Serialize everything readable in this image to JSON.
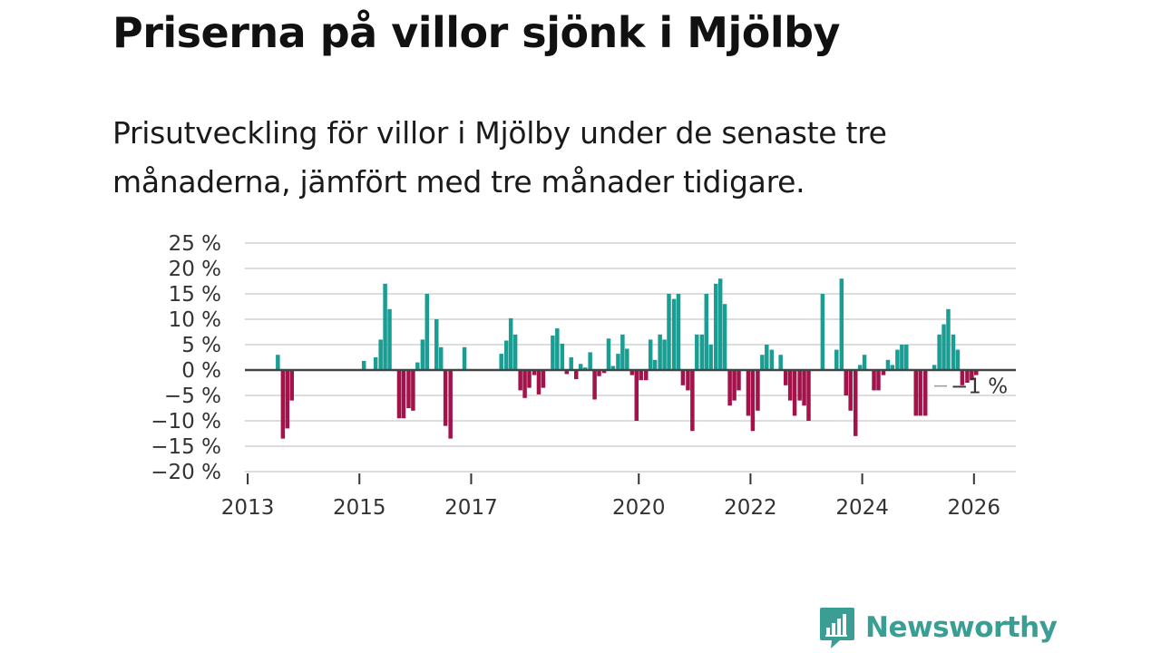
{
  "title": "Priserna på villor sjönk i Mjölby",
  "subtitle": "Prisutveckling för villor i Mjölby under de senaste tre månaderna, jämfört med tre månader tidigare.",
  "brand": {
    "name": "Newsworthy",
    "logo_icon": "newsworthy-chart-bubble-icon",
    "color": "#3a9e94"
  },
  "colors": {
    "positive": "#1a9e94",
    "negative": "#a3124a",
    "zero_line": "#444444",
    "grid": "#dddddd"
  },
  "chart_data": {
    "type": "bar",
    "title": "Priserna på villor sjönk i Mjölby",
    "xlabel": "",
    "ylabel": "",
    "ylim": [
      -20,
      25
    ],
    "x_range": [
      2012.95,
      2026.75
    ],
    "yticks": [
      -20,
      -15,
      -10,
      -5,
      0,
      5,
      10,
      15,
      20,
      25
    ],
    "ytick_labels": [
      "−20 %",
      "−15 %",
      "−10 %",
      "−5 %",
      "0 %",
      "5 %",
      "10 %",
      "15 %",
      "20 %",
      "25 %"
    ],
    "xticks": [
      2013,
      2015,
      2017,
      2020,
      2022,
      2024,
      2026
    ],
    "xtick_labels": [
      "2013",
      "2015",
      "2017",
      "2020",
      "2022",
      "2024",
      "2026"
    ],
    "grid": true,
    "annotation": {
      "text": "−1 %",
      "x": 2026.08,
      "y": -1
    },
    "series": [
      {
        "name": "Prisutveckling",
        "points": [
          {
            "x": 2013.54,
            "y": 3
          },
          {
            "x": 2013.63,
            "y": -13.5
          },
          {
            "x": 2013.71,
            "y": -11.5
          },
          {
            "x": 2013.79,
            "y": -6
          },
          {
            "x": 2015.08,
            "y": 1.8
          },
          {
            "x": 2015.29,
            "y": 2.5
          },
          {
            "x": 2015.38,
            "y": 6
          },
          {
            "x": 2015.46,
            "y": 17
          },
          {
            "x": 2015.54,
            "y": 12
          },
          {
            "x": 2015.71,
            "y": -9.5
          },
          {
            "x": 2015.79,
            "y": -9.5
          },
          {
            "x": 2015.88,
            "y": -7.5
          },
          {
            "x": 2015.96,
            "y": -8
          },
          {
            "x": 2016.04,
            "y": 1.5
          },
          {
            "x": 2016.13,
            "y": 6
          },
          {
            "x": 2016.21,
            "y": 15
          },
          {
            "x": 2016.38,
            "y": 10
          },
          {
            "x": 2016.46,
            "y": 4.5
          },
          {
            "x": 2016.54,
            "y": -11
          },
          {
            "x": 2016.63,
            "y": -13.5
          },
          {
            "x": 2016.88,
            "y": 4.5
          },
          {
            "x": 2017.54,
            "y": 3.2
          },
          {
            "x": 2017.63,
            "y": 5.8
          },
          {
            "x": 2017.71,
            "y": 10.2
          },
          {
            "x": 2017.79,
            "y": 7
          },
          {
            "x": 2017.88,
            "y": -4
          },
          {
            "x": 2017.96,
            "y": -5.5
          },
          {
            "x": 2018.04,
            "y": -3.5
          },
          {
            "x": 2018.13,
            "y": -1
          },
          {
            "x": 2018.21,
            "y": -4.8
          },
          {
            "x": 2018.29,
            "y": -3.5
          },
          {
            "x": 2018.46,
            "y": 6.8
          },
          {
            "x": 2018.54,
            "y": 8.2
          },
          {
            "x": 2018.63,
            "y": 5.2
          },
          {
            "x": 2018.71,
            "y": -0.8
          },
          {
            "x": 2018.79,
            "y": 2.5
          },
          {
            "x": 2018.88,
            "y": -1.8
          },
          {
            "x": 2018.96,
            "y": 1.2
          },
          {
            "x": 2019.04,
            "y": 0.5
          },
          {
            "x": 2019.13,
            "y": 3.5
          },
          {
            "x": 2019.21,
            "y": -5.8
          },
          {
            "x": 2019.29,
            "y": -1.2
          },
          {
            "x": 2019.38,
            "y": -0.6
          },
          {
            "x": 2019.46,
            "y": 6.2
          },
          {
            "x": 2019.54,
            "y": 0.8
          },
          {
            "x": 2019.63,
            "y": 3.2
          },
          {
            "x": 2019.71,
            "y": 7
          },
          {
            "x": 2019.79,
            "y": 4.2
          },
          {
            "x": 2019.88,
            "y": -1
          },
          {
            "x": 2019.96,
            "y": -10
          },
          {
            "x": 2020.04,
            "y": -2
          },
          {
            "x": 2020.13,
            "y": -2
          },
          {
            "x": 2020.21,
            "y": 6
          },
          {
            "x": 2020.29,
            "y": 2
          },
          {
            "x": 2020.38,
            "y": 7
          },
          {
            "x": 2020.46,
            "y": 6
          },
          {
            "x": 2020.54,
            "y": 15
          },
          {
            "x": 2020.63,
            "y": 14
          },
          {
            "x": 2020.71,
            "y": 15
          },
          {
            "x": 2020.79,
            "y": -3
          },
          {
            "x": 2020.88,
            "y": -4
          },
          {
            "x": 2020.96,
            "y": -12
          },
          {
            "x": 2021.04,
            "y": 7
          },
          {
            "x": 2021.13,
            "y": 7
          },
          {
            "x": 2021.21,
            "y": 15
          },
          {
            "x": 2021.29,
            "y": 5
          },
          {
            "x": 2021.38,
            "y": 17
          },
          {
            "x": 2021.46,
            "y": 18
          },
          {
            "x": 2021.54,
            "y": 13
          },
          {
            "x": 2021.63,
            "y": -7
          },
          {
            "x": 2021.71,
            "y": -6
          },
          {
            "x": 2021.79,
            "y": -4
          },
          {
            "x": 2021.96,
            "y": -9
          },
          {
            "x": 2022.04,
            "y": -12
          },
          {
            "x": 2022.13,
            "y": -8
          },
          {
            "x": 2022.21,
            "y": 3
          },
          {
            "x": 2022.29,
            "y": 5
          },
          {
            "x": 2022.38,
            "y": 4
          },
          {
            "x": 2022.54,
            "y": 3
          },
          {
            "x": 2022.63,
            "y": -3
          },
          {
            "x": 2022.71,
            "y": -6
          },
          {
            "x": 2022.79,
            "y": -9
          },
          {
            "x": 2022.88,
            "y": -6
          },
          {
            "x": 2022.96,
            "y": -7
          },
          {
            "x": 2023.04,
            "y": -10
          },
          {
            "x": 2023.29,
            "y": 15
          },
          {
            "x": 2023.54,
            "y": 4
          },
          {
            "x": 2023.63,
            "y": 18
          },
          {
            "x": 2023.71,
            "y": -5
          },
          {
            "x": 2023.79,
            "y": -8
          },
          {
            "x": 2023.88,
            "y": -13
          },
          {
            "x": 2023.96,
            "y": 1
          },
          {
            "x": 2024.04,
            "y": 3
          },
          {
            "x": 2024.21,
            "y": -4
          },
          {
            "x": 2024.29,
            "y": -4
          },
          {
            "x": 2024.38,
            "y": -1
          },
          {
            "x": 2024.46,
            "y": 2
          },
          {
            "x": 2024.54,
            "y": 1
          },
          {
            "x": 2024.63,
            "y": 4
          },
          {
            "x": 2024.71,
            "y": 5
          },
          {
            "x": 2024.79,
            "y": 5
          },
          {
            "x": 2024.96,
            "y": -9
          },
          {
            "x": 2025.04,
            "y": -9
          },
          {
            "x": 2025.13,
            "y": -9
          },
          {
            "x": 2025.29,
            "y": 1
          },
          {
            "x": 2025.38,
            "y": 7
          },
          {
            "x": 2025.46,
            "y": 9
          },
          {
            "x": 2025.54,
            "y": 12
          },
          {
            "x": 2025.63,
            "y": 7
          },
          {
            "x": 2025.71,
            "y": 4
          },
          {
            "x": 2025.79,
            "y": -3
          },
          {
            "x": 2025.88,
            "y": -2.5
          },
          {
            "x": 2025.96,
            "y": -2
          },
          {
            "x": 2026.04,
            "y": -1
          }
        ]
      }
    ]
  }
}
